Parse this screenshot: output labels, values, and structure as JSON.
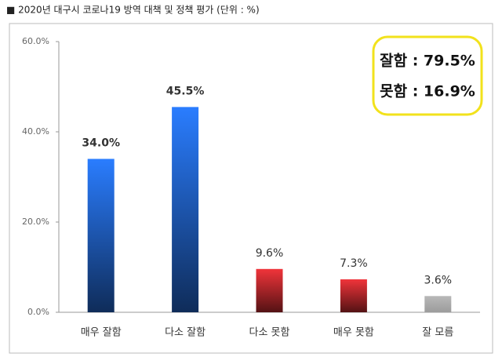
{
  "chart_data": {
    "type": "bar",
    "title": "■ 2020년 대구시 코로나19 방역 대책 및 정책 평가 (단위 : %)",
    "categories": [
      "매우 잘함",
      "다소 잘함",
      "다소 못함",
      "매우 못함",
      "잘 모름"
    ],
    "values": [
      34.0,
      45.5,
      9.6,
      7.3,
      3.6
    ],
    "value_labels": [
      "34.0%",
      "45.5%",
      "9.6%",
      "7.3%",
      "3.6%"
    ],
    "colors": [
      "#2a7dff",
      "#2a7dff",
      "#f0343a",
      "#f0343a",
      "#b8b8b8"
    ],
    "ylim": [
      0,
      60
    ],
    "yticks": [
      {
        "value": 0,
        "label": "0.0%"
      },
      {
        "value": 20,
        "label": "20.0%"
      },
      {
        "value": 40,
        "label": "40.0%"
      },
      {
        "value": 60,
        "label": "60.0%"
      }
    ],
    "grid": false,
    "annotations": [
      "잘함 : 79.5%",
      "못함 : 16.9%"
    ]
  }
}
